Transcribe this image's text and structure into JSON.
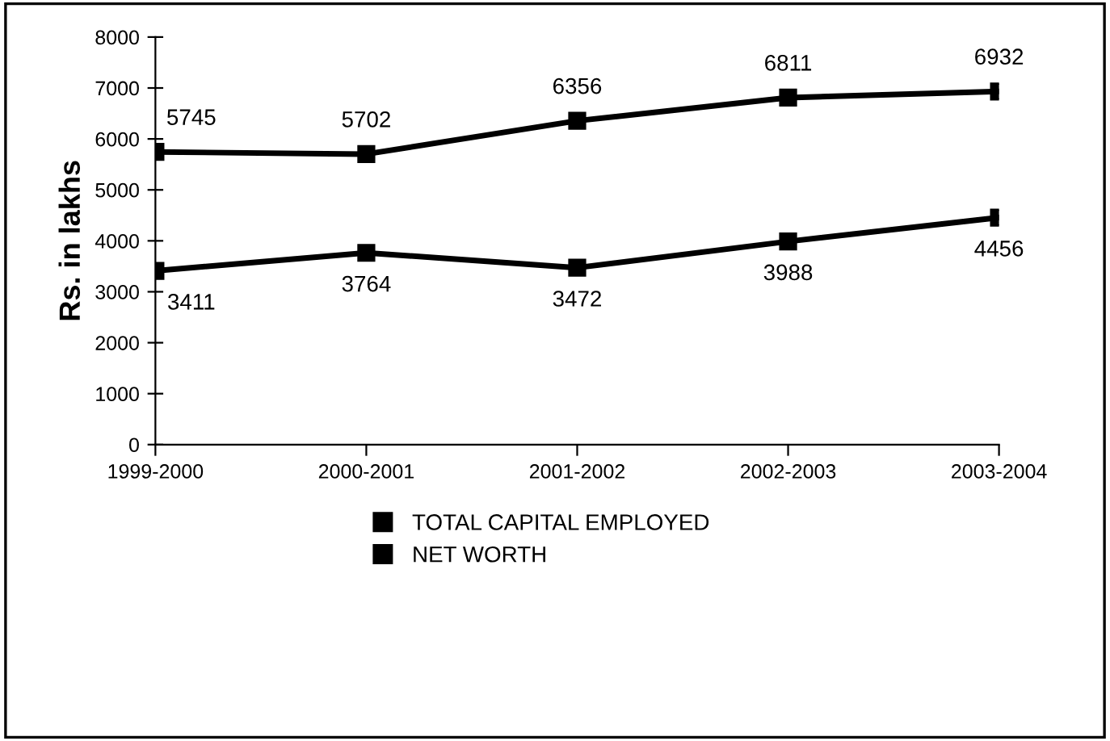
{
  "chart_data": {
    "type": "line",
    "ylabel": "Rs. in lakhs",
    "categories": [
      "1999-2000",
      "2000-2001",
      "2001-2002",
      "2002-2003",
      "2003-2004"
    ],
    "series": [
      {
        "name": "TOTAL CAPITAL EMPLOYED",
        "color": "#000000",
        "values": [
          5745,
          5702,
          6356,
          6811,
          6932
        ]
      },
      {
        "name": "NET WORTH",
        "color": "#000000",
        "values": [
          3411,
          3764,
          3472,
          3988,
          4456
        ]
      }
    ],
    "ylim": [
      0,
      8000
    ],
    "yticks": [
      0,
      1000,
      2000,
      3000,
      4000,
      5000,
      6000,
      7000,
      8000
    ],
    "data_labels": true,
    "marker": "square",
    "line_style": "solid",
    "grid": false,
    "legend": "bottom"
  }
}
